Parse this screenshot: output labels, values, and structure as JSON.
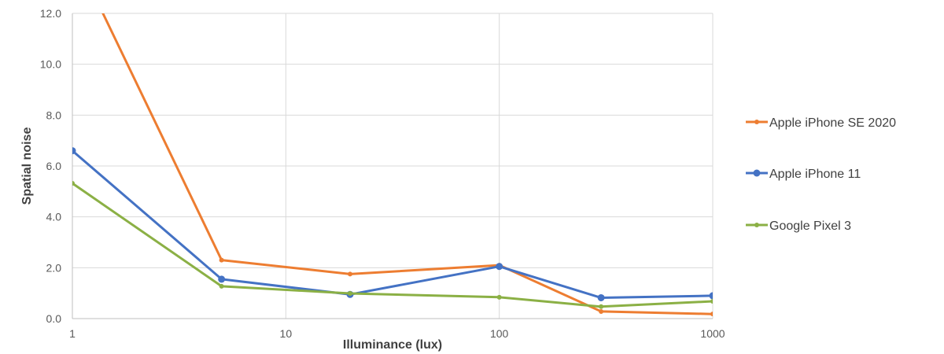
{
  "chart_data": {
    "type": "line",
    "xscale": "log",
    "xlim": [
      1,
      1000
    ],
    "ylim": [
      0,
      12
    ],
    "xlabel": "Illuminance (lux)",
    "ylabel": "Spatial noise",
    "x_ticks": [
      "1",
      "10",
      "100",
      "1000"
    ],
    "y_ticks": [
      "0.0",
      "2.0",
      "4.0",
      "6.0",
      "8.0",
      "10.0",
      "12.0"
    ],
    "grid": true,
    "legend_position": "right",
    "x": [
      1,
      5,
      20,
      100,
      300,
      1000
    ],
    "series": [
      {
        "name": "Apple iPhone SE 2020",
        "color": "#ED7D31",
        "values": [
          14.5,
          2.3,
          1.75,
          2.1,
          0.28,
          0.18
        ]
      },
      {
        "name": "Apple iPhone 11",
        "color": "#4472C4",
        "values": [
          6.6,
          1.55,
          0.95,
          2.05,
          0.82,
          0.9
        ]
      },
      {
        "name": "Google Pixel 3",
        "color": "#8BB045",
        "values": [
          5.32,
          1.27,
          0.99,
          0.84,
          0.47,
          0.68
        ]
      }
    ]
  }
}
